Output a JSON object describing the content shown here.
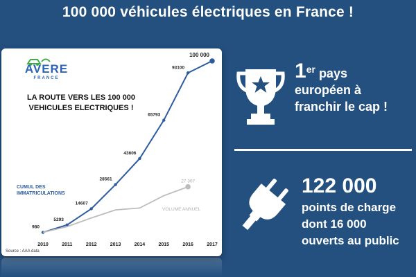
{
  "headline": "100 000 véhicules électriques en France !",
  "logo": {
    "word": "AVERE",
    "sub": "FRANCE"
  },
  "card_title_line1": "LA ROUTE VERS LES 100 000",
  "card_title_line2": "VEHICULES ELECTRIQUES !",
  "source": "Source : AAA data",
  "colors": {
    "background": "#23507f",
    "cumul": "#2d5c9e",
    "annuel": "#bcbcbc"
  },
  "chart_data": {
    "type": "line",
    "x": [
      2010,
      2011,
      2012,
      2013,
      2014,
      2015,
      2016,
      2017
    ],
    "xlim": [
      2010,
      2017
    ],
    "ylim": [
      0,
      100000
    ],
    "series": [
      {
        "name": "CUMUL DES IMMATRICULATIONS",
        "x": [
          2010,
          2011,
          2012,
          2013,
          2014,
          2015,
          2016,
          2017
        ],
        "values": [
          980,
          5293,
          14607,
          28561,
          43606,
          65793,
          93100,
          100000
        ],
        "labels": [
          "980",
          "5293",
          "14607",
          "28561",
          "43606",
          "65793",
          "93100",
          "100 000"
        ]
      },
      {
        "name": "VOLUME ANNUEL",
        "x": [
          2010,
          2011,
          2012,
          2013,
          2014,
          2015,
          2016
        ],
        "values": [
          980,
          4313,
          9314,
          13954,
          15045,
          22187,
          27307
        ],
        "labels": [
          "27 307"
        ]
      }
    ]
  },
  "rank": {
    "number": "1",
    "suffix": "er",
    "word": "pays",
    "line2": "européen à",
    "line3": "franchir le cap !"
  },
  "points": {
    "count": "122 000",
    "line1": "points de charge",
    "line2": "dont 16 000",
    "line3": "ouverts au public"
  }
}
